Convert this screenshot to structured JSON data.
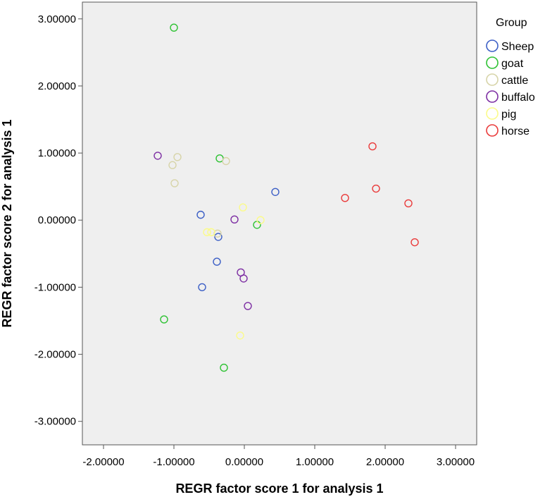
{
  "chart_data": {
    "type": "scatter",
    "xlabel": "REGR factor score   1 for analysis 1",
    "ylabel": "REGR factor score   2 for analysis 1",
    "xlim": [
      -2.3,
      3.3
    ],
    "ylim": [
      -3.35,
      3.25
    ],
    "x_ticks": [
      -2,
      -1,
      0,
      1,
      2,
      3
    ],
    "y_ticks": [
      -3,
      -2,
      -1,
      0,
      1,
      2,
      3
    ],
    "x_tick_labels": [
      "-2.00000",
      "-1.00000",
      "0.00000",
      "1.00000",
      "2.00000",
      "3.00000"
    ],
    "y_tick_labels": [
      "-3.00000",
      "-2.00000",
      "-1.00000",
      "0.00000",
      "1.00000",
      "2.00000",
      "3.00000"
    ],
    "grid": false,
    "background": "#efefef",
    "legend": {
      "title": "Group",
      "position": "right"
    },
    "marker": "open-circle",
    "series": [
      {
        "name": "Sheep",
        "color": "#3c5fc6",
        "points": [
          [
            0.44,
            0.42
          ],
          [
            -0.62,
            0.08
          ],
          [
            -0.37,
            -0.25
          ],
          [
            -0.39,
            -0.62
          ],
          [
            -0.6,
            -1.0
          ]
        ]
      },
      {
        "name": "goat",
        "color": "#2ec233",
        "points": [
          [
            -1.0,
            2.87
          ],
          [
            -0.35,
            0.92
          ],
          [
            0.18,
            -0.07
          ],
          [
            -1.14,
            -1.48
          ],
          [
            -0.29,
            -2.2
          ]
        ]
      },
      {
        "name": "cattle",
        "color": "#d7d4a8",
        "points": [
          [
            -0.95,
            0.94
          ],
          [
            -1.02,
            0.82
          ],
          [
            -0.26,
            0.88
          ],
          [
            -0.99,
            0.55
          ],
          [
            -0.38,
            -0.2
          ]
        ]
      },
      {
        "name": "buffalo",
        "color": "#7d2ea3",
        "points": [
          [
            -1.23,
            0.96
          ],
          [
            -0.14,
            0.01
          ],
          [
            -0.05,
            -0.78
          ],
          [
            -0.01,
            -0.87
          ],
          [
            0.05,
            -1.28
          ]
        ]
      },
      {
        "name": "pig",
        "color": "#fbfb8a",
        "points": [
          [
            -0.02,
            0.19
          ],
          [
            0.23,
            0.0
          ],
          [
            -0.53,
            -0.18
          ],
          [
            -0.47,
            -0.18
          ],
          [
            -0.06,
            -1.72
          ]
        ]
      },
      {
        "name": "horse",
        "color": "#ea3b3b",
        "points": [
          [
            1.82,
            1.1
          ],
          [
            1.87,
            0.47
          ],
          [
            1.43,
            0.33
          ],
          [
            2.33,
            0.25
          ],
          [
            2.42,
            -0.33
          ]
        ]
      }
    ]
  }
}
